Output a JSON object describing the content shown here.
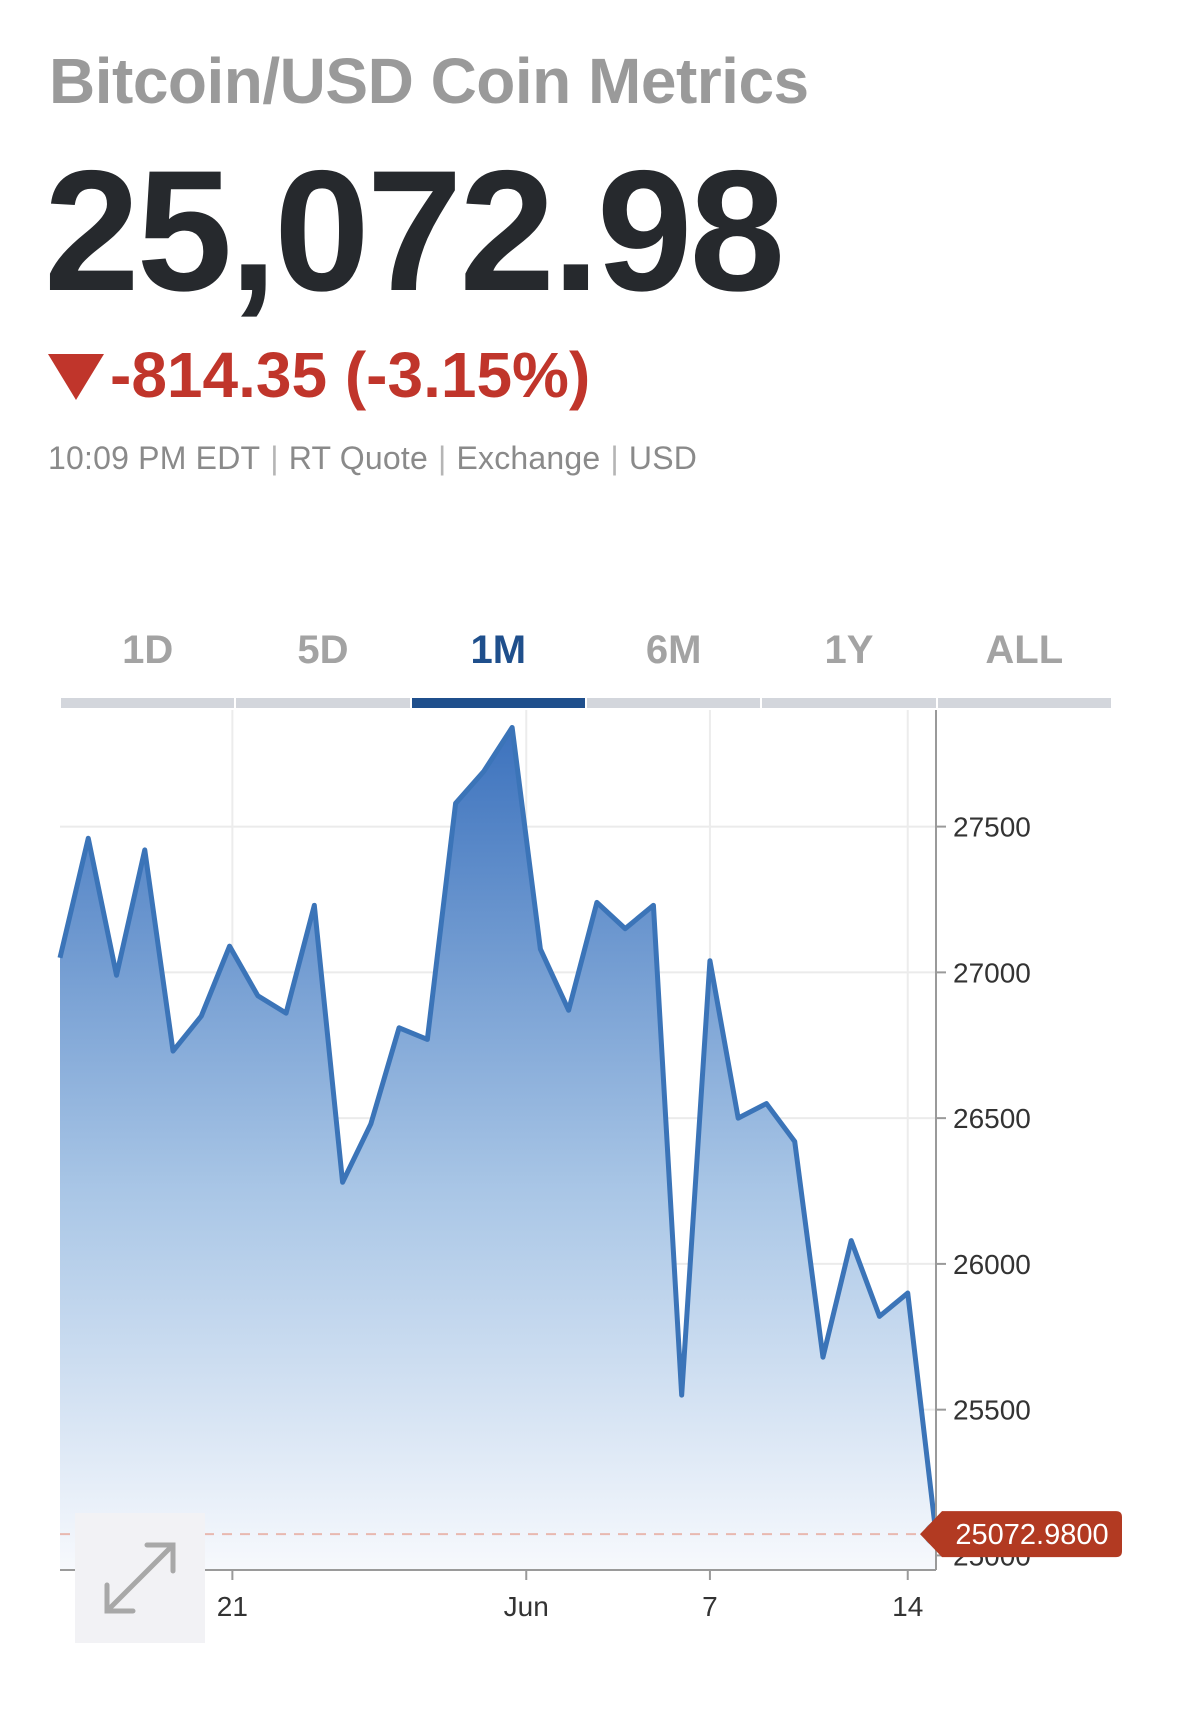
{
  "header": {
    "title": "Bitcoin/USD Coin Metrics",
    "price": "25,072.98",
    "change": "-814.35 (-3.15%)",
    "meta": [
      "10:09 PM EDT",
      "RT Quote",
      "Exchange",
      "USD"
    ]
  },
  "tabs": [
    {
      "label": "1D",
      "active": false
    },
    {
      "label": "5D",
      "active": false
    },
    {
      "label": "1M",
      "active": true
    },
    {
      "label": "6M",
      "active": false
    },
    {
      "label": "1Y",
      "active": false
    },
    {
      "label": "ALL",
      "active": false
    }
  ],
  "icons": {
    "expand": "expand-arrows-icon",
    "change": "triangle-down-icon"
  },
  "colors": {
    "line": "#3b74b8",
    "negative": "#c0352b",
    "last_marker": "#8dd0f5",
    "accent": "#1f4f8c"
  },
  "chart_data": {
    "type": "area",
    "x_tick_labels": [
      "21",
      "Jun",
      "7",
      "14"
    ],
    "y_tick_labels": [
      "25000",
      "25500",
      "26000",
      "26500",
      "27000",
      "27500"
    ],
    "ylim": [
      24950,
      27900
    ],
    "grid": true,
    "last_value_label": "25072.9800",
    "series": [
      {
        "values": [
          27050,
          27460,
          26990,
          27420,
          26730,
          26850,
          27090,
          26920,
          26860,
          27230,
          26280,
          26480,
          26810,
          26770,
          27580,
          27690,
          27840,
          27080,
          26870,
          27240,
          27150,
          27230,
          25550,
          27040,
          26500,
          26550,
          26420,
          25680,
          26080,
          25820,
          25900,
          25072.98
        ]
      }
    ]
  }
}
